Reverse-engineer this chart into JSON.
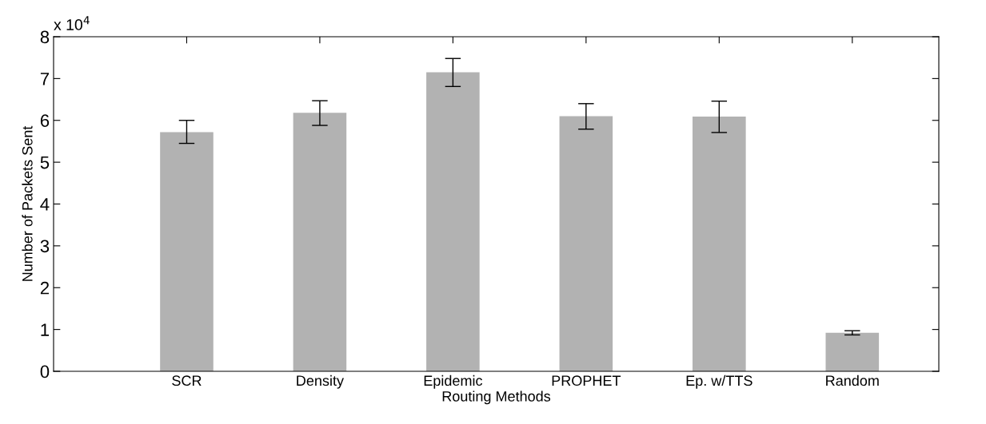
{
  "chart_data": {
    "type": "bar",
    "categories": [
      "SCR",
      "Density",
      "Epidemic",
      "PROPHET",
      "Ep. w/TTS",
      "Random"
    ],
    "values": [
      5.72,
      6.18,
      7.15,
      6.1,
      6.09,
      0.92
    ],
    "errors": [
      [
        5.45,
        6.0
      ],
      [
        5.88,
        6.47
      ],
      [
        6.81,
        7.48
      ],
      [
        5.79,
        6.4
      ],
      [
        5.71,
        6.46
      ],
      [
        0.87,
        0.97
      ]
    ],
    "color": "#b2b2b2",
    "xlabel": "Routing Methods",
    "ylabel": "Number of Packets Sent",
    "annotations": [
      "x 10$^{4}$"
    ],
    "ylim": [
      0,
      8
    ],
    "yticks": [
      0,
      1,
      2,
      3,
      4,
      5,
      6,
      7,
      8
    ],
    "grid": false,
    "legend": false
  }
}
